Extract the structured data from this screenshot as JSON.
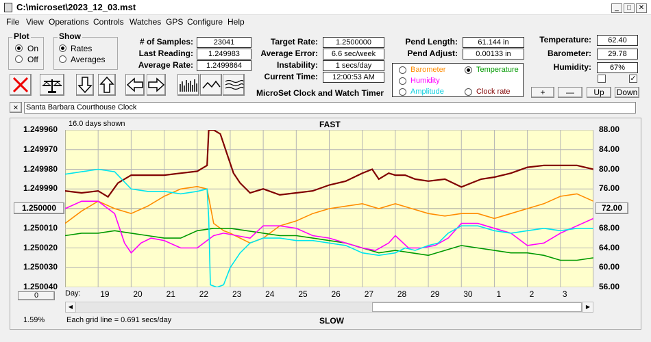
{
  "window": {
    "title": "C:\\microset\\2023_12_03.mst",
    "minimize": "_",
    "restore": "□",
    "close": "✕"
  },
  "menu": [
    "File",
    "View",
    "Operations",
    "Controls",
    "Watches",
    "GPS",
    "Configure",
    "Help"
  ],
  "plot_group": {
    "legend": "Plot",
    "on": "On",
    "off": "Off",
    "selected": "On"
  },
  "show_group": {
    "legend": "Show",
    "rates": "Rates",
    "averages": "Averages",
    "selected": "Rates"
  },
  "stats": {
    "samples_label": "# of Samples:",
    "samples": "23041",
    "last_label": "Last Reading:",
    "last": "1.249983",
    "avg_label": "Average Rate:",
    "avg": "1.2499864"
  },
  "rates": {
    "target_label": "Target Rate:",
    "target": "1.2500000",
    "error_label": "Average Error:",
    "error": "6.6 sec/week",
    "instab_label": "Instability:",
    "instab": "1 secs/day",
    "time_label": "Current Time:",
    "time": "12:00:53 AM"
  },
  "program_title": "MicroSet Clock and Watch Timer",
  "pend": {
    "length_label": "Pend Length:",
    "length": "61.144 in",
    "adjust_label": "Pend Adjust:",
    "adjust": "0.00133 in"
  },
  "series_select": {
    "barometer": "Barometer",
    "temperature": "Temperature",
    "humidity": "Humidity",
    "amplitude": "Amplitude",
    "clock_rate": "Clock rate",
    "selected": "Temperature"
  },
  "env": {
    "temp_label": "Temperature:",
    "temp": "62.40",
    "baro_label": "Barometer:",
    "baro": "29.78",
    "hum_label": "Humidity:",
    "hum": "67%",
    "check1": "",
    "check2": "✓"
  },
  "scale_buttons": {
    "plus": "+",
    "minus": "—",
    "up": "Up",
    "down": "Down"
  },
  "clock_name": "Santa Barbara Courthouse Clock",
  "clock_close": "×",
  "plot": {
    "days_shown": "16.0 days shown",
    "top": "FAST",
    "bottom": "SLOW",
    "grid_note": "Each grid line = 0.691 secs/day",
    "percent": "1.59%",
    "day_label": "Day:",
    "left_button": "0",
    "center_button": "1.250000",
    "right_button": "72.00"
  },
  "colors": {
    "background": "#ffffcc",
    "grid": "#b4b4b4",
    "clock_rate": "#800000",
    "barometer": "#ff8c00",
    "temperature": "#009900",
    "humidity": "#ff00ff",
    "amplitude": "#00e5ee"
  },
  "chart_data": {
    "type": "line",
    "title": "FAST",
    "xlabel": "Day:",
    "x_ticks": [
      "19",
      "20",
      "21",
      "22",
      "23",
      "24",
      "25",
      "26",
      "27",
      "28",
      "29",
      "30",
      "1",
      "2",
      "3"
    ],
    "y_left_ticks": [
      "1.249960",
      "1.249970",
      "1.249980",
      "1.249990",
      "1.250000",
      "1.250010",
      "1.250020",
      "1.250030",
      "1.250040"
    ],
    "y_left_range": [
      1.24996,
      1.25004
    ],
    "y_left_inverted": true,
    "y_right_ticks": [
      "88.00",
      "84.00",
      "80.00",
      "76.00",
      "72.00",
      "68.00",
      "64.00",
      "60.00",
      "56.00"
    ],
    "y_right_range": [
      56,
      88
    ],
    "grid": true,
    "x_range": [
      18,
      34
    ],
    "series": [
      {
        "name": "Clock rate",
        "axis": "left",
        "color": "#800000",
        "x": [
          18.0,
          18.5,
          19.0,
          19.3,
          19.6,
          20.0,
          20.5,
          21.0,
          21.5,
          22.0,
          22.3,
          22.35,
          22.5,
          22.7,
          22.9,
          23.1,
          23.3,
          23.6,
          24.0,
          24.5,
          25.0,
          25.5,
          26.0,
          26.5,
          27.0,
          27.3,
          27.5,
          27.8,
          28.0,
          28.3,
          28.6,
          29.0,
          29.5,
          30.0,
          30.3,
          30.6,
          31.0,
          31.5,
          32.0,
          32.5,
          33.0,
          33.5,
          34.0
        ],
        "y": [
          1.249991,
          1.249992,
          1.249991,
          1.249994,
          1.249987,
          1.249983,
          1.249983,
          1.249983,
          1.249982,
          1.249981,
          1.249978,
          1.24996,
          1.24996,
          1.249962,
          1.249972,
          1.249982,
          1.249987,
          1.249992,
          1.24999,
          1.249993,
          1.249992,
          1.249991,
          1.249988,
          1.249986,
          1.249982,
          1.24998,
          1.249985,
          1.249982,
          1.249983,
          1.249983,
          1.249985,
          1.249986,
          1.249985,
          1.249989,
          1.249987,
          1.249985,
          1.249984,
          1.249982,
          1.249979,
          1.249978,
          1.249978,
          1.249978,
          1.24998
        ]
      },
      {
        "name": "Barometer",
        "axis": "right",
        "color": "#ff8c00",
        "x": [
          18.0,
          18.5,
          19.0,
          19.5,
          20.0,
          20.5,
          21.0,
          21.5,
          22.0,
          22.3,
          22.5,
          22.8,
          23.0,
          23.3,
          23.6,
          24.0,
          24.5,
          25.0,
          25.5,
          26.0,
          26.5,
          27.0,
          27.5,
          28.0,
          28.5,
          29.0,
          29.5,
          30.0,
          30.5,
          31.0,
          31.5,
          32.0,
          32.5,
          33.0,
          33.5,
          34.0
        ],
        "y": [
          69.0,
          71.5,
          73.5,
          72.0,
          71.0,
          72.5,
          74.5,
          76.0,
          76.5,
          76.0,
          69.0,
          67.5,
          67.0,
          66.0,
          65.0,
          66.0,
          68.5,
          69.5,
          71.0,
          72.0,
          72.5,
          73.0,
          72.0,
          73.0,
          72.0,
          71.0,
          70.5,
          71.0,
          71.0,
          70.0,
          71.0,
          72.0,
          73.0,
          74.5,
          75.0,
          73.5
        ]
      },
      {
        "name": "Temperature",
        "axis": "right",
        "color": "#009900",
        "x": [
          18.0,
          18.5,
          19.0,
          19.5,
          20.0,
          20.5,
          21.0,
          21.5,
          22.0,
          22.5,
          23.0,
          23.5,
          24.0,
          24.5,
          25.0,
          25.5,
          26.0,
          26.5,
          27.0,
          27.5,
          28.0,
          28.5,
          29.0,
          29.5,
          30.0,
          30.5,
          31.0,
          31.5,
          32.0,
          32.5,
          33.0,
          33.5,
          34.0
        ],
        "y": [
          66.5,
          67.0,
          67.0,
          67.5,
          67.0,
          66.5,
          66.0,
          66.0,
          67.5,
          68.0,
          68.0,
          67.5,
          67.0,
          66.5,
          66.5,
          66.0,
          65.5,
          65.0,
          64.0,
          63.0,
          63.5,
          63.0,
          62.5,
          63.5,
          64.5,
          64.0,
          63.5,
          63.0,
          63.0,
          62.5,
          61.5,
          61.5,
          62.0
        ]
      },
      {
        "name": "Humidity",
        "axis": "right",
        "color": "#ff00ff",
        "x": [
          18.0,
          18.5,
          19.0,
          19.5,
          19.8,
          20.0,
          20.3,
          20.6,
          21.0,
          21.5,
          22.0,
          22.5,
          22.8,
          23.2,
          23.6,
          24.0,
          24.5,
          25.0,
          25.5,
          26.0,
          26.5,
          27.0,
          27.4,
          27.8,
          28.0,
          28.4,
          28.8,
          29.2,
          29.6,
          30.0,
          30.5,
          31.0,
          31.5,
          32.0,
          32.5,
          33.0,
          33.5,
          34.0
        ],
        "y": [
          72.0,
          73.5,
          73.5,
          71.0,
          65.0,
          63.0,
          65.0,
          66.0,
          65.5,
          64.0,
          64.0,
          66.5,
          67.0,
          66.5,
          66.0,
          68.5,
          68.5,
          68.0,
          66.5,
          66.0,
          65.0,
          64.0,
          63.5,
          65.0,
          66.5,
          64.0,
          64.0,
          64.5,
          66.0,
          69.0,
          69.0,
          68.0,
          67.0,
          64.5,
          65.0,
          67.0,
          68.5,
          70.0
        ]
      },
      {
        "name": "Amplitude",
        "axis": "right",
        "color": "#00e5ee",
        "x": [
          18.0,
          18.5,
          19.0,
          19.5,
          20.0,
          20.5,
          21.0,
          21.5,
          22.0,
          22.3,
          22.35,
          22.4,
          22.6,
          22.8,
          23.0,
          23.3,
          23.6,
          24.0,
          24.5,
          25.0,
          25.5,
          26.0,
          26.5,
          27.0,
          27.5,
          28.0,
          28.3,
          28.6,
          29.0,
          29.3,
          29.6,
          30.0,
          30.5,
          31.0,
          31.5,
          32.0,
          32.5,
          33.0,
          33.5,
          34.0
        ],
        "y": [
          79.0,
          79.5,
          80.0,
          79.5,
          76.0,
          75.5,
          75.5,
          75.0,
          75.5,
          76.0,
          70.0,
          56.5,
          56.0,
          56.5,
          60.0,
          63.0,
          65.0,
          66.0,
          66.0,
          65.5,
          65.5,
          65.0,
          64.5,
          63.0,
          62.5,
          63.0,
          64.0,
          63.5,
          64.5,
          65.0,
          67.0,
          68.5,
          68.5,
          67.5,
          67.0,
          67.5,
          68.0,
          67.5,
          68.0,
          68.0
        ]
      }
    ]
  }
}
